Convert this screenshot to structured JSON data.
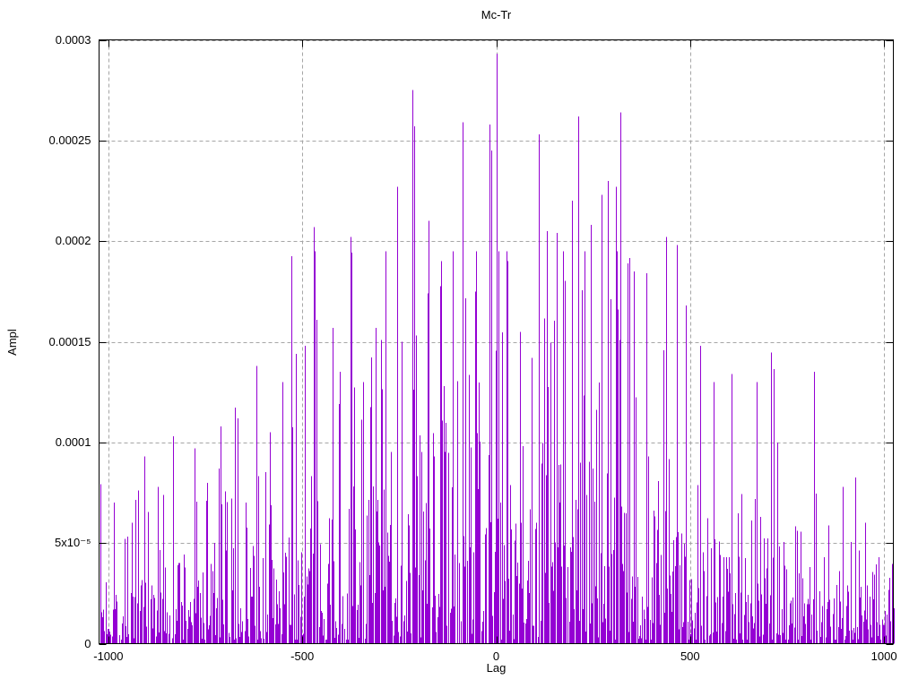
{
  "page": {
    "background": "#ffffff"
  },
  "chart_data": {
    "type": "impulses",
    "title": "Mc-Tr",
    "xlabel": "Lag",
    "ylabel": "Ampl",
    "xlim": [
      -1024,
      1024
    ],
    "ylim": [
      0,
      0.0003
    ],
    "x_ticks": {
      "values": [
        -1000,
        -500,
        0,
        500,
        1000
      ],
      "labels": [
        "-1000",
        "-500",
        "0",
        "500",
        "1000"
      ]
    },
    "y_ticks": {
      "values": [
        0,
        5e-05,
        0.0001,
        0.00015,
        0.0002,
        0.00025,
        0.0003
      ],
      "labels": [
        "0",
        "5x10⁻⁵",
        "0.0001",
        "0.00015",
        "0.0002",
        "0.00025",
        "0.0003"
      ]
    },
    "grid": {
      "show": true,
      "color": "#a6a6a6",
      "dash": "4,3"
    },
    "series_color": "#9400d3",
    "border_color": "#000000",
    "legend": "none",
    "n_points": 760,
    "seed": 7,
    "envelope": {
      "edge_mean": 2.1e-05,
      "center_mean": 7.2e-05,
      "power": 1.6,
      "noise_cap": 0.000195,
      "min_value": 2e-06,
      "dropout": 0.07
    },
    "peaks": [
      [
        -985,
        7e-05
      ],
      [
        -958,
        5.2e-05
      ],
      [
        -940,
        6e-05
      ],
      [
        -908,
        9.3e-05
      ],
      [
        -873,
        7.8e-05
      ],
      [
        -833,
        0.000103
      ],
      [
        -779,
        9.7e-05
      ],
      [
        -745,
        8e-05
      ],
      [
        -710,
        0.000108
      ],
      [
        -668,
        0.000112
      ],
      [
        -620,
        0.000138
      ],
      [
        -585,
        0.000105
      ],
      [
        -553,
        0.00013
      ],
      [
        -516,
        0.000144
      ],
      [
        -493,
        0.000148
      ],
      [
        -472,
        0.000207
      ],
      [
        -462,
        0.000161
      ],
      [
        -423,
        0.000157
      ],
      [
        -404,
        0.000135
      ],
      [
        -377,
        0.000202
      ],
      [
        -344,
        0.00013
      ],
      [
        -312,
        0.000157
      ],
      [
        -298,
        0.000151
      ],
      [
        -254,
        0.000227
      ],
      [
        -245,
        0.00015
      ],
      [
        -217,
        0.000275
      ],
      [
        -211,
        0.000257
      ],
      [
        -173,
        0.00021
      ],
      [
        -141,
        0.00019
      ],
      [
        -111,
        0.000167
      ],
      [
        -88,
        0.000259
      ],
      [
        -55,
        0.000175
      ],
      [
        -17,
        0.000258
      ],
      [
        -12,
        0.000245
      ],
      [
        0,
        0.000293
      ],
      [
        28,
        0.00019
      ],
      [
        62,
        0.000155
      ],
      [
        109,
        0.000253
      ],
      [
        132,
        0.000205
      ],
      [
        154,
        0.000204
      ],
      [
        170,
        0.000195
      ],
      [
        195,
        0.00022
      ],
      [
        213,
        0.000262
      ],
      [
        244,
        0.000208
      ],
      [
        270,
        0.000223
      ],
      [
        288,
        0.00023
      ],
      [
        310,
        0.000227
      ],
      [
        321,
        0.000264
      ],
      [
        354,
        0.000185
      ],
      [
        388,
        0.000184
      ],
      [
        438,
        0.000202
      ],
      [
        465,
        0.000198
      ],
      [
        490,
        0.000168
      ],
      [
        525,
        0.000148
      ],
      [
        560,
        0.00013
      ],
      [
        606,
        0.000134
      ],
      [
        670,
        0.00013
      ],
      [
        725,
        0.0001
      ],
      [
        818,
        0.000135
      ],
      [
        895,
        7.8e-05
      ],
      [
        950,
        6e-05
      ]
    ]
  }
}
